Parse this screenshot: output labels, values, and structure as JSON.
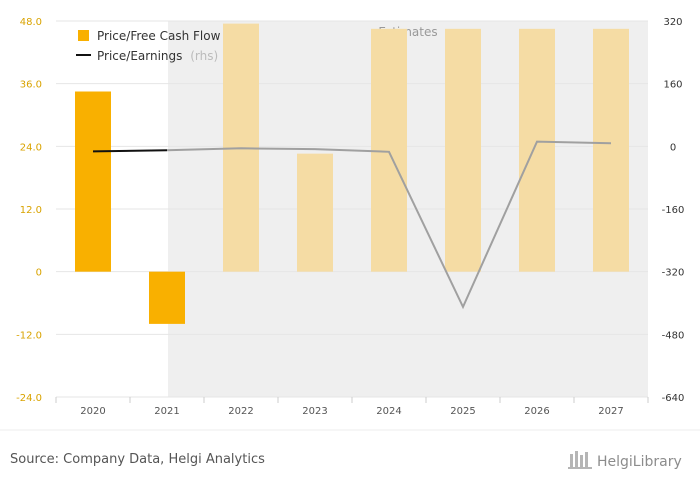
{
  "chart_data": {
    "type": "bar",
    "categories": [
      "2020",
      "2021",
      "2022",
      "2023",
      "2024",
      "2025",
      "2026",
      "2027"
    ],
    "estimates_from_index": 2,
    "estimates_label": "Estimates",
    "series": [
      {
        "name": "Price/Free Cash Flow",
        "type": "bar",
        "axis": "left",
        "color": "#f9b000",
        "color_estimate": "#f5dca4",
        "values": [
          34.5,
          -10.0,
          47.5,
          22.6,
          46.5,
          46.5,
          46.5,
          46.5
        ]
      },
      {
        "name": "Price/Earnings",
        "name_suffix": "(rhs)",
        "type": "line",
        "axis": "right",
        "color": "#111111",
        "color_estimate": "#a0a0a0",
        "values": [
          -13,
          -10,
          -5,
          -7,
          -14,
          -410,
          12,
          8
        ]
      }
    ],
    "y_left": {
      "min": -24,
      "max": 48,
      "ticks": [
        "48.0",
        "36.0",
        "24.0",
        "12.0",
        "0",
        "-12.0",
        "-24.0"
      ]
    },
    "y_right": {
      "min": -640,
      "max": 320,
      "ticks": [
        "320",
        "160",
        "0",
        "-160",
        "-320",
        "-480",
        "-640"
      ]
    },
    "grid": true,
    "legend": "top-left"
  },
  "footer": {
    "source": "Source: Company Data, Helgi Analytics",
    "brand": "HelgiLibrary"
  },
  "colors": {
    "estimate_bg": "#efefef",
    "grid": "#e6e6e6",
    "left_axis_text": "#d9a300"
  }
}
